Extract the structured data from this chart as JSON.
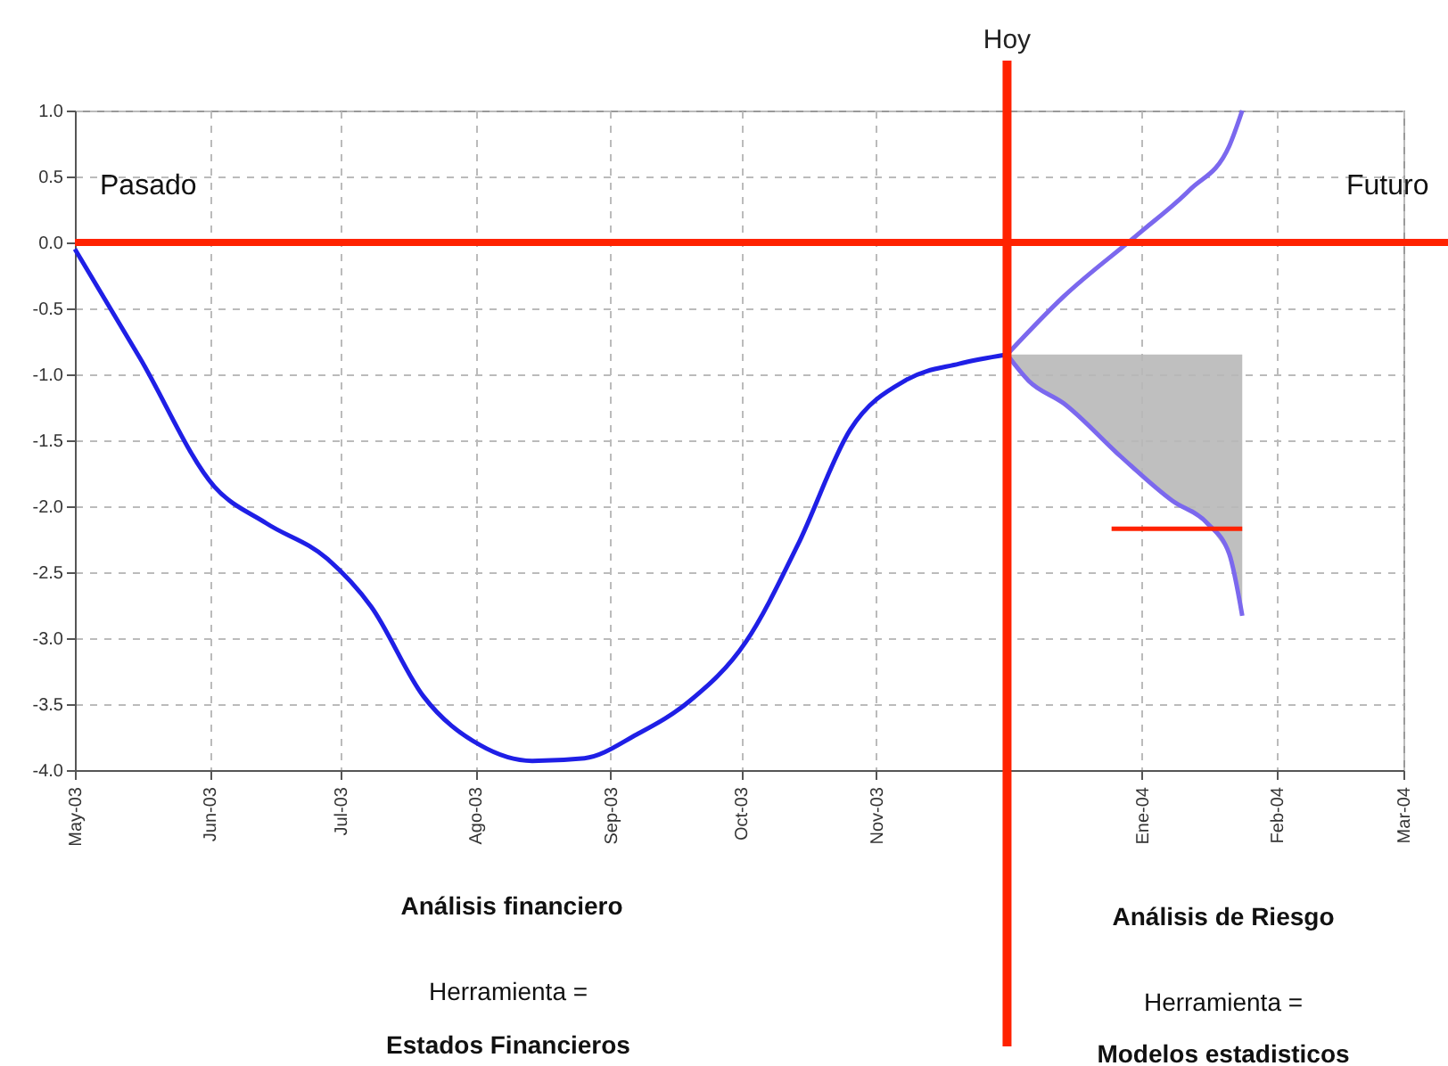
{
  "chart_data": {
    "type": "line",
    "xlim": [
      "2003-05-01",
      "2004-03-01"
    ],
    "xticks": [
      {
        "value": "2003-05-01",
        "label": "May-03"
      },
      {
        "value": "2003-06-01",
        "label": "Jun-03"
      },
      {
        "value": "2003-07-01",
        "label": "Jul-03"
      },
      {
        "value": "2003-08-01",
        "label": "Ago-03"
      },
      {
        "value": "2003-09-01",
        "label": "Sep-03"
      },
      {
        "value": "2003-10-01",
        "label": "Oct-03"
      },
      {
        "value": "2003-11-01",
        "label": "Nov-03"
      },
      {
        "value": "2003-12-01",
        "label": null
      },
      {
        "value": "2004-01-01",
        "label": "Ene-04"
      },
      {
        "value": "2004-02-01",
        "label": "Feb-04"
      },
      {
        "value": "2004-03-01",
        "label": "Mar-04"
      }
    ],
    "ylim": [
      -4.0,
      1.0
    ],
    "yticks": [
      {
        "value": -4,
        "label": "-4.0"
      },
      {
        "value": -3.5,
        "label": "-3.5"
      },
      {
        "value": -3,
        "label": "-3.0"
      },
      {
        "value": -2.5,
        "label": "-2.5"
      },
      {
        "value": -2,
        "label": "-2.0"
      },
      {
        "value": -1.5,
        "label": "-1.5"
      },
      {
        "value": -1,
        "label": "-1.0"
      },
      {
        "value": -0.5,
        "label": "-0.5"
      },
      {
        "value": 0,
        "label": "0.0"
      },
      {
        "value": 0.5,
        "label": "0.5"
      },
      {
        "value": 1,
        "label": "1.0"
      }
    ],
    "grid": true,
    "series": [
      {
        "color": "#1f1fe6",
        "x": [
          "2003-05-01",
          "2003-05-16",
          "2003-06-02",
          "2003-06-14",
          "2003-06-28",
          "2003-07-08",
          "2003-07-20",
          "2003-08-02",
          "2003-08-14",
          "2003-08-26",
          "2003-09-07",
          "2003-09-19",
          "2003-10-02",
          "2003-10-14",
          "2003-10-26",
          "2003-11-08",
          "2003-11-20",
          "2003-12-01"
        ],
        "values": [
          -0.05,
          -0.88,
          -1.85,
          -2.13,
          -2.4,
          -2.76,
          -3.44,
          -3.81,
          -3.93,
          -3.91,
          -3.73,
          -3.48,
          -3.03,
          -2.29,
          -1.42,
          -1.04,
          -0.92,
          -0.85
        ]
      },
      {
        "color": "#7b68ee",
        "x": [
          "2003-12-01",
          "2003-12-14",
          "2003-12-31",
          "2004-01-12",
          "2004-01-21",
          "2004-01-24"
        ],
        "values": [
          -0.85,
          -0.41,
          0.06,
          0.4,
          0.73,
          1.0
        ]
      },
      {
        "color": "#7b68ee",
        "x": [
          "2003-12-01",
          "2003-12-06",
          "2003-12-14",
          "2003-12-27",
          "2004-01-08",
          "2004-01-16",
          "2004-01-21",
          "2004-01-24"
        ],
        "values": [
          -0.85,
          -1.05,
          -1.22,
          -1.62,
          -1.96,
          -2.13,
          -2.36,
          -2.83
        ],
        "lower": [
          -0.85,
          -1.05,
          -1.22,
          -1.62,
          -1.96,
          -2.13,
          -2.36,
          -2.83
        ],
        "upper": [
          -0.85,
          -0.85,
          -0.85,
          -0.85,
          -0.85,
          -0.85,
          -0.85,
          -0.85
        ]
      },
      {
        "color": "#ff2200",
        "x": [
          "2003-12-25",
          "2004-01-24"
        ],
        "values": [
          -2.17,
          -2.17
        ]
      }
    ],
    "ref_lines": [
      {
        "axis": "y",
        "value": 0,
        "color": "#ff2200"
      },
      {
        "axis": "x",
        "value": "2003-12-01",
        "label": "Hoy",
        "color": "#ff2200"
      }
    ],
    "annotations": [
      "Pasado",
      "Futuro",
      "Análisis financiero",
      "Herramienta =",
      "Estados Financieros",
      "Análisis de Riesgo",
      "Herramienta =",
      "Modelos estadisticos"
    ]
  }
}
